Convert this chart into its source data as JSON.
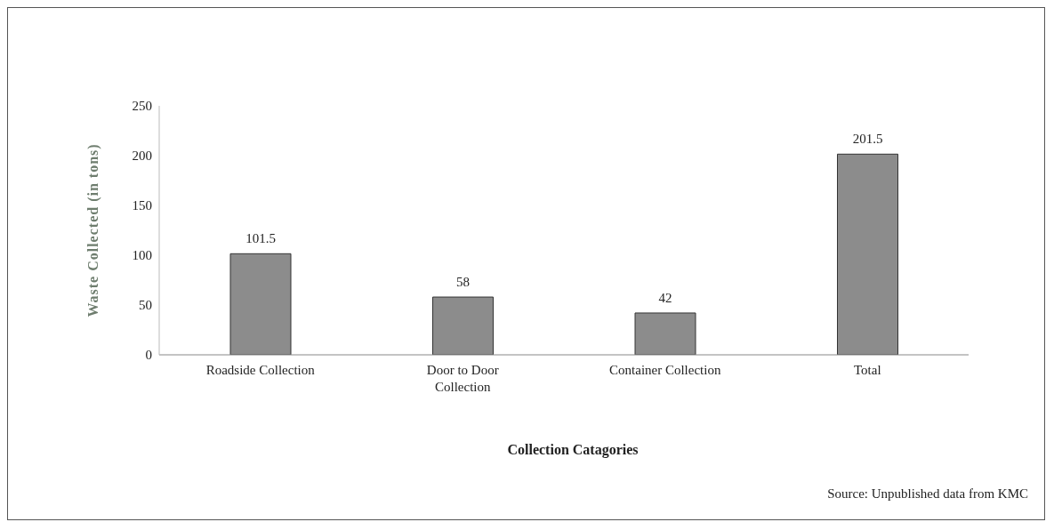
{
  "chart_data": {
    "type": "bar",
    "xlabel": "Collection Catagories",
    "ylabel": "Waste Collected (in tons)",
    "categories": [
      "Roadside Collection",
      "Door to Door Collection",
      "Container Collection",
      "Total"
    ],
    "values": [
      101.5,
      58,
      42,
      201.5
    ],
    "color": "#8c8c8c",
    "ylim": [
      0,
      250
    ],
    "yticks": [
      0,
      50,
      100,
      150,
      200,
      250
    ],
    "data_labels": true,
    "annotations": [
      "Source: Unpublished data from KMC"
    ]
  }
}
